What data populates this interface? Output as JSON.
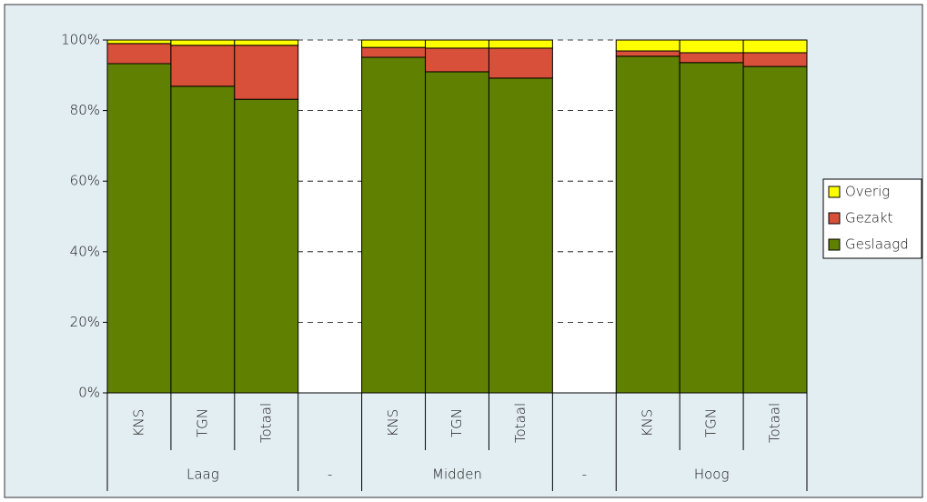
{
  "chart_data": {
    "type": "stacked-bar-100",
    "categories": [
      "KNS",
      "TGN",
      "Totaal",
      null,
      "KNS",
      "TGN",
      "Totaal",
      null,
      "KNS",
      "TGN",
      "Totaal"
    ],
    "groups": [
      "Laag",
      "-",
      "Midden",
      "-",
      "Hoog"
    ],
    "series": [
      {
        "name": "Geslaagd",
        "color": "#5f8000",
        "values": [
          93.3,
          86.9,
          83.2,
          null,
          95.1,
          91.0,
          89.2,
          null,
          95.4,
          93.6,
          92.5
        ]
      },
      {
        "name": "Gezakt",
        "color": "#d9503a",
        "values": [
          5.7,
          11.6,
          15.3,
          null,
          2.8,
          6.7,
          8.5,
          null,
          1.5,
          2.8,
          3.9
        ]
      },
      {
        "name": "Overig",
        "color": "#ffff00",
        "values": [
          1.0,
          1.5,
          1.5,
          null,
          2.1,
          2.3,
          2.3,
          null,
          3.1,
          3.6,
          3.6
        ]
      }
    ],
    "ylim": [
      0,
      100
    ],
    "yticks": [
      {
        "value": 0,
        "label": "0%"
      },
      {
        "value": 20,
        "label": "20%"
      },
      {
        "value": 40,
        "label": "40%"
      },
      {
        "value": 60,
        "label": "60%"
      },
      {
        "value": 80,
        "label": "80%"
      },
      {
        "value": 100,
        "label": "100%"
      }
    ],
    "grid": true
  }
}
